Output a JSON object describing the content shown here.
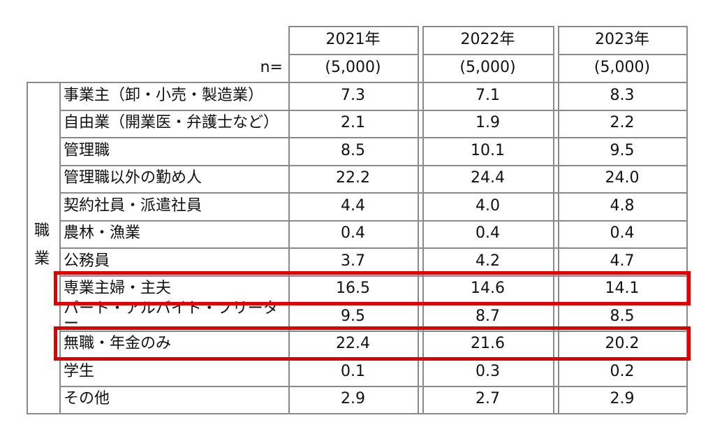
{
  "chart_data": {
    "type": "table",
    "n_label": "n=",
    "category_label": [
      "職",
      "業"
    ],
    "columns": [
      {
        "year": "2021年",
        "n": "(5,000)"
      },
      {
        "year": "2022年",
        "n": "(5,000)"
      },
      {
        "year": "2023年",
        "n": "(5,000)"
      }
    ],
    "rows": [
      {
        "label": "事業主（卸・小売・製造業）",
        "values": [
          "7.3",
          "7.1",
          "8.3"
        ]
      },
      {
        "label": "自由業（開業医・弁護士など）",
        "values": [
          "2.1",
          "1.9",
          "2.2"
        ]
      },
      {
        "label": "管理職",
        "values": [
          "8.5",
          "10.1",
          "9.5"
        ]
      },
      {
        "label": "管理職以外の勤め人",
        "values": [
          "22.2",
          "24.4",
          "24.0"
        ]
      },
      {
        "label": "契約社員・派遣社員",
        "values": [
          "4.4",
          "4.0",
          "4.8"
        ]
      },
      {
        "label": "農林・漁業",
        "values": [
          "0.4",
          "0.4",
          "0.4"
        ]
      },
      {
        "label": "公務員",
        "values": [
          "3.7",
          "4.2",
          "4.7"
        ]
      },
      {
        "label": "専業主婦・主夫",
        "values": [
          "16.5",
          "14.6",
          "14.1"
        ]
      },
      {
        "label": "パート・アルバイト・フリーター",
        "values": [
          "9.5",
          "8.7",
          "8.5"
        ]
      },
      {
        "label": "無職・年金のみ",
        "values": [
          "22.4",
          "21.6",
          "20.2"
        ]
      },
      {
        "label": "学生",
        "values": [
          "0.1",
          "0.3",
          "0.2"
        ]
      },
      {
        "label": "その他",
        "values": [
          "2.9",
          "2.7",
          "2.9"
        ]
      }
    ],
    "highlighted_rows": [
      7,
      9
    ],
    "highlight_color": "#e00000",
    "grid_color": "#8a8a8a"
  }
}
